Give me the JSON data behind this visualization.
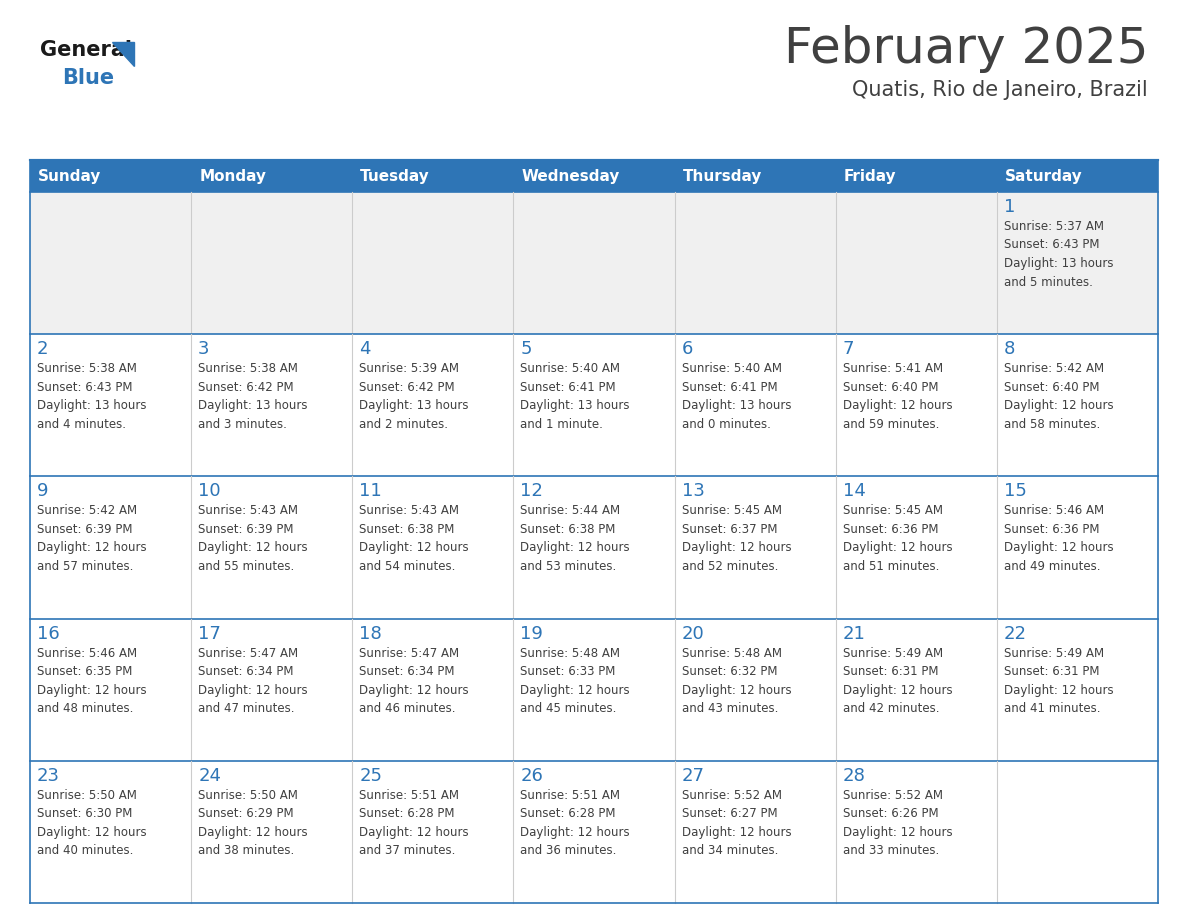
{
  "title": "February 2025",
  "subtitle": "Quatis, Rio de Janeiro, Brazil",
  "header_color": "#2E75B6",
  "header_text_color": "#FFFFFF",
  "cell_border_color": "#2E75B6",
  "day_number_color": "#2E75B6",
  "text_color": "#404040",
  "background_color": "#FFFFFF",
  "cell_bg_light": "#f0f0f0",
  "days_of_week": [
    "Sunday",
    "Monday",
    "Tuesday",
    "Wednesday",
    "Thursday",
    "Friday",
    "Saturday"
  ],
  "calendar_data": [
    [
      {
        "day": "",
        "info": ""
      },
      {
        "day": "",
        "info": ""
      },
      {
        "day": "",
        "info": ""
      },
      {
        "day": "",
        "info": ""
      },
      {
        "day": "",
        "info": ""
      },
      {
        "day": "",
        "info": ""
      },
      {
        "day": "1",
        "info": "Sunrise: 5:37 AM\nSunset: 6:43 PM\nDaylight: 13 hours\nand 5 minutes."
      }
    ],
    [
      {
        "day": "2",
        "info": "Sunrise: 5:38 AM\nSunset: 6:43 PM\nDaylight: 13 hours\nand 4 minutes."
      },
      {
        "day": "3",
        "info": "Sunrise: 5:38 AM\nSunset: 6:42 PM\nDaylight: 13 hours\nand 3 minutes."
      },
      {
        "day": "4",
        "info": "Sunrise: 5:39 AM\nSunset: 6:42 PM\nDaylight: 13 hours\nand 2 minutes."
      },
      {
        "day": "5",
        "info": "Sunrise: 5:40 AM\nSunset: 6:41 PM\nDaylight: 13 hours\nand 1 minute."
      },
      {
        "day": "6",
        "info": "Sunrise: 5:40 AM\nSunset: 6:41 PM\nDaylight: 13 hours\nand 0 minutes."
      },
      {
        "day": "7",
        "info": "Sunrise: 5:41 AM\nSunset: 6:40 PM\nDaylight: 12 hours\nand 59 minutes."
      },
      {
        "day": "8",
        "info": "Sunrise: 5:42 AM\nSunset: 6:40 PM\nDaylight: 12 hours\nand 58 minutes."
      }
    ],
    [
      {
        "day": "9",
        "info": "Sunrise: 5:42 AM\nSunset: 6:39 PM\nDaylight: 12 hours\nand 57 minutes."
      },
      {
        "day": "10",
        "info": "Sunrise: 5:43 AM\nSunset: 6:39 PM\nDaylight: 12 hours\nand 55 minutes."
      },
      {
        "day": "11",
        "info": "Sunrise: 5:43 AM\nSunset: 6:38 PM\nDaylight: 12 hours\nand 54 minutes."
      },
      {
        "day": "12",
        "info": "Sunrise: 5:44 AM\nSunset: 6:38 PM\nDaylight: 12 hours\nand 53 minutes."
      },
      {
        "day": "13",
        "info": "Sunrise: 5:45 AM\nSunset: 6:37 PM\nDaylight: 12 hours\nand 52 minutes."
      },
      {
        "day": "14",
        "info": "Sunrise: 5:45 AM\nSunset: 6:36 PM\nDaylight: 12 hours\nand 51 minutes."
      },
      {
        "day": "15",
        "info": "Sunrise: 5:46 AM\nSunset: 6:36 PM\nDaylight: 12 hours\nand 49 minutes."
      }
    ],
    [
      {
        "day": "16",
        "info": "Sunrise: 5:46 AM\nSunset: 6:35 PM\nDaylight: 12 hours\nand 48 minutes."
      },
      {
        "day": "17",
        "info": "Sunrise: 5:47 AM\nSunset: 6:34 PM\nDaylight: 12 hours\nand 47 minutes."
      },
      {
        "day": "18",
        "info": "Sunrise: 5:47 AM\nSunset: 6:34 PM\nDaylight: 12 hours\nand 46 minutes."
      },
      {
        "day": "19",
        "info": "Sunrise: 5:48 AM\nSunset: 6:33 PM\nDaylight: 12 hours\nand 45 minutes."
      },
      {
        "day": "20",
        "info": "Sunrise: 5:48 AM\nSunset: 6:32 PM\nDaylight: 12 hours\nand 43 minutes."
      },
      {
        "day": "21",
        "info": "Sunrise: 5:49 AM\nSunset: 6:31 PM\nDaylight: 12 hours\nand 42 minutes."
      },
      {
        "day": "22",
        "info": "Sunrise: 5:49 AM\nSunset: 6:31 PM\nDaylight: 12 hours\nand 41 minutes."
      }
    ],
    [
      {
        "day": "23",
        "info": "Sunrise: 5:50 AM\nSunset: 6:30 PM\nDaylight: 12 hours\nand 40 minutes."
      },
      {
        "day": "24",
        "info": "Sunrise: 5:50 AM\nSunset: 6:29 PM\nDaylight: 12 hours\nand 38 minutes."
      },
      {
        "day": "25",
        "info": "Sunrise: 5:51 AM\nSunset: 6:28 PM\nDaylight: 12 hours\nand 37 minutes."
      },
      {
        "day": "26",
        "info": "Sunrise: 5:51 AM\nSunset: 6:28 PM\nDaylight: 12 hours\nand 36 minutes."
      },
      {
        "day": "27",
        "info": "Sunrise: 5:52 AM\nSunset: 6:27 PM\nDaylight: 12 hours\nand 34 minutes."
      },
      {
        "day": "28",
        "info": "Sunrise: 5:52 AM\nSunset: 6:26 PM\nDaylight: 12 hours\nand 33 minutes."
      },
      {
        "day": "",
        "info": ""
      }
    ]
  ],
  "logo_general_color": "#1a1a1a",
  "logo_blue_color": "#2E75B6",
  "logo_triangle_color": "#2E75B6"
}
